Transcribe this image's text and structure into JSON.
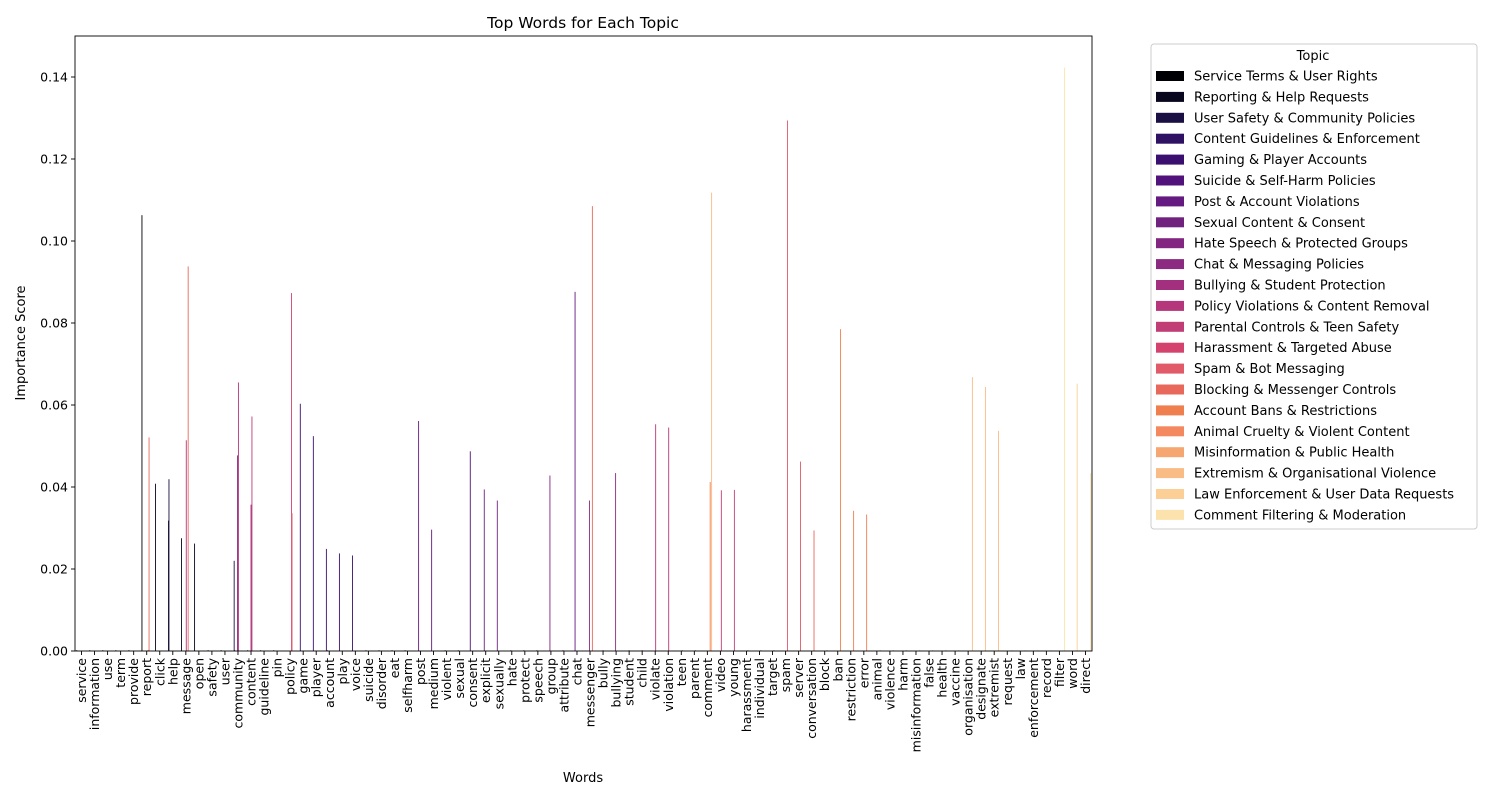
{
  "chart_data": {
    "type": "bar",
    "title": "Top Words for Each Topic",
    "xlabel": "Words",
    "ylabel": "Importance Score",
    "ylim": [
      0,
      0.15
    ],
    "yticks": [
      "0.00",
      "0.02",
      "0.04",
      "0.06",
      "0.08",
      "0.10",
      "0.12",
      "0.14"
    ],
    "grid": false,
    "legend_title": "Topic",
    "legend_position": "outside-right",
    "categories": [
      "service",
      "information",
      "use",
      "term",
      "provide",
      "report",
      "click",
      "help",
      "message",
      "open",
      "safety",
      "user",
      "community",
      "content",
      "guideline",
      "pin",
      "policy",
      "game",
      "player",
      "account",
      "play",
      "voice",
      "suicide",
      "disorder",
      "eat",
      "selfharm",
      "post",
      "medium",
      "violent",
      "sexual",
      "consent",
      "explicit",
      "sexually",
      "hate",
      "protect",
      "speech",
      "group",
      "attribute",
      "chat",
      "messenger",
      "bully",
      "bullying",
      "student",
      "child",
      "violate",
      "violation",
      "teen",
      "parent",
      "comment",
      "video",
      "young",
      "harassment",
      "individual",
      "target",
      "spam",
      "server",
      "conversation",
      "block",
      "ban",
      "restriction",
      "error",
      "animal",
      "violence",
      "harm",
      "misinformation",
      "false",
      "health",
      "vaccine",
      "organisation",
      "designate",
      "extremist",
      "request",
      "law",
      "enforcement",
      "record",
      "filter",
      "word",
      "direct"
    ],
    "series": [
      {
        "name": "Service Terms & User Rights",
        "color": "#000004",
        "points": [
          [
            "service",
            0.0002
          ],
          [
            "information",
            0.0002
          ],
          [
            "use",
            0.0002
          ],
          [
            "term",
            0.0002
          ],
          [
            "provide",
            0.0002
          ],
          [
            "report",
            0.1063
          ]
        ]
      },
      {
        "name": "Reporting & Help Requests",
        "color": "#08071d",
        "points": [
          [
            "click",
            0.0408
          ],
          [
            "help",
            0.0318
          ],
          [
            "message",
            0.0275
          ],
          [
            "open",
            0.0262
          ]
        ]
      },
      {
        "name": "User Safety & Community Policies",
        "color": "#1b1044",
        "points": [
          [
            "safety",
            0.0002
          ],
          [
            "user",
            0.0002
          ],
          [
            "community",
            0.022
          ],
          [
            "help",
            0.0419
          ]
        ]
      },
      {
        "name": "Content Guidelines & Enforcement",
        "color": "#2f1163",
        "points": [
          [
            "content",
            0.0002
          ],
          [
            "guideline",
            0.0002
          ],
          [
            "pin",
            0.0002
          ],
          [
            "community",
            0.0002
          ]
        ]
      },
      {
        "name": "Gaming & Player Accounts",
        "color": "#3b0f70",
        "points": [
          [
            "game",
            0.0603
          ],
          [
            "player",
            0.0524
          ],
          [
            "account",
            0.0249
          ],
          [
            "play",
            0.0238
          ],
          [
            "voice",
            0.0233
          ]
        ]
      },
      {
        "name": "Suicide & Self-Harm Policies",
        "color": "#51127c",
        "points": [
          [
            "suicide",
            0.0002
          ],
          [
            "disorder",
            0.0002
          ],
          [
            "eat",
            0.0002
          ],
          [
            "selfharm",
            0.0002
          ],
          [
            "consent",
            0.0487
          ]
        ]
      },
      {
        "name": "Post & Account Violations",
        "color": "#641a80",
        "points": [
          [
            "post",
            0.0561
          ],
          [
            "medium",
            0.0296
          ],
          [
            "account",
            0.0002
          ],
          [
            "chat",
            0.0876
          ]
        ]
      },
      {
        "name": "Sexual Content & Consent",
        "color": "#71227f",
        "points": [
          [
            "violent",
            0.0002
          ],
          [
            "sexual",
            0.0002
          ],
          [
            "explicit",
            0.0394
          ],
          [
            "sexually",
            0.0367
          ]
        ]
      },
      {
        "name": "Hate Speech & Protected Groups",
        "color": "#822681",
        "points": [
          [
            "hate",
            0.0002
          ],
          [
            "protect",
            0.0002
          ],
          [
            "speech",
            0.0002
          ],
          [
            "group",
            0.0428
          ],
          [
            "attribute",
            0.0002
          ]
        ]
      },
      {
        "name": "Chat & Messaging Policies",
        "color": "#8c2981",
        "points": [
          [
            "messenger",
            0.0367
          ],
          [
            "community",
            0.0477
          ],
          [
            "bullying",
            0.0434
          ]
        ]
      },
      {
        "name": "Bullying & Student Protection",
        "color": "#a3307e",
        "points": [
          [
            "bully",
            0.0002
          ],
          [
            "student",
            0.0002
          ],
          [
            "child",
            0.0002
          ],
          [
            "content",
            0.0357
          ]
        ]
      },
      {
        "name": "Policy Violations & Content Removal",
        "color": "#b5367a",
        "points": [
          [
            "violate",
            0.0553
          ],
          [
            "violation",
            0.0545
          ],
          [
            "community",
            0.0655
          ],
          [
            "message",
            0.0514
          ]
        ]
      },
      {
        "name": "Parental Controls & Teen Safety",
        "color": "#c13d75",
        "points": [
          [
            "teen",
            0.0002
          ],
          [
            "parent",
            0.0002
          ],
          [
            "video",
            0.0392
          ],
          [
            "young",
            0.0393
          ],
          [
            "content",
            0.0572
          ]
        ]
      },
      {
        "name": "Harassment & Targeted Abuse",
        "color": "#d3436e",
        "points": [
          [
            "harassment",
            0.0002
          ],
          [
            "individual",
            0.0002
          ],
          [
            "target",
            0.0002
          ],
          [
            "policy",
            0.0873
          ],
          [
            "report",
            0.0002
          ]
        ]
      },
      {
        "name": "Spam & Bot Messaging",
        "color": "#e05a6a",
        "points": [
          [
            "spam",
            0.1294
          ],
          [
            "server",
            0.0462
          ],
          [
            "policy",
            0.0336
          ]
        ]
      },
      {
        "name": "Blocking & Messenger Controls",
        "color": "#e8685c",
        "points": [
          [
            "message",
            0.0938
          ],
          [
            "block",
            0.0002
          ],
          [
            "conversation",
            0.0294
          ],
          [
            "messenger",
            0.1085
          ],
          [
            "report",
            0.0521
          ]
        ]
      },
      {
        "name": "Account Bans & Restrictions",
        "color": "#f07f4f",
        "points": [
          [
            "ban",
            0.0785
          ],
          [
            "restriction",
            0.0342
          ],
          [
            "error",
            0.0333
          ],
          [
            "comment",
            0.0412
          ]
        ]
      },
      {
        "name": "Animal Cruelty & Violent Content",
        "color": "#f4895f",
        "points": [
          [
            "animal",
            0.0002
          ],
          [
            "violence",
            0.0002
          ],
          [
            "harm",
            0.0002
          ]
        ]
      },
      {
        "name": "Misinformation & Public Health",
        "color": "#f6a670",
        "points": [
          [
            "misinformation",
            0.0002
          ],
          [
            "false",
            0.0002
          ],
          [
            "health",
            0.0002
          ],
          [
            "vaccine",
            0.0002
          ]
        ]
      },
      {
        "name": "Extremism & Organisational Violence",
        "color": "#f9bc85",
        "points": [
          [
            "organisation",
            0.0668
          ],
          [
            "designate",
            0.0644
          ],
          [
            "extremist",
            0.0537
          ],
          [
            "comment",
            0.1118
          ]
        ]
      },
      {
        "name": "Law Enforcement & User Data Requests",
        "color": "#fbcf96",
        "points": [
          [
            "request",
            0.0002
          ],
          [
            "law",
            0.0002
          ],
          [
            "enforcement",
            0.0002
          ],
          [
            "record",
            0.0002
          ],
          [
            "word",
            0.0652
          ]
        ]
      },
      {
        "name": "Comment Filtering & Moderation",
        "color": "#fce3ad",
        "points": [
          [
            "filter",
            0.1423
          ],
          [
            "direct",
            0.0434
          ]
        ]
      }
    ]
  }
}
